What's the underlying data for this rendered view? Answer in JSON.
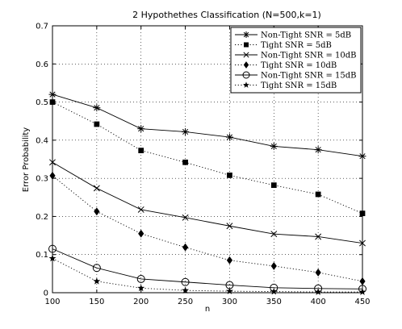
{
  "chart_data": {
    "type": "line",
    "title": "2 Hypothethes Classification (N=500,k=1)",
    "xlabel": "n",
    "ylabel": "Error Probability",
    "xlim": [
      100,
      450
    ],
    "ylim": [
      0,
      0.7
    ],
    "x": [
      100,
      150,
      200,
      250,
      300,
      350,
      400,
      450
    ],
    "x_ticks": [
      "100",
      "150",
      "200",
      "250",
      "300",
      "350",
      "400",
      "450"
    ],
    "y_ticks": [
      "0",
      "0.1",
      "0.2",
      "0.3",
      "0.4",
      "0.5",
      "0.6",
      "0.7"
    ],
    "grid": true,
    "legend_position": "top-right",
    "series": [
      {
        "name": "Non-Tight SNR = 5dB",
        "marker": "asterisk",
        "line": "solid",
        "values": [
          0.52,
          0.485,
          0.43,
          0.422,
          0.408,
          0.384,
          0.375,
          0.358
        ]
      },
      {
        "name": "Tight SNR = 5dB",
        "marker": "square",
        "line": "dotted",
        "values": [
          0.5,
          0.442,
          0.373,
          0.342,
          0.308,
          0.282,
          0.258,
          0.208
        ]
      },
      {
        "name": "Non-Tight SNR = 10dB",
        "marker": "x",
        "line": "solid",
        "values": [
          0.342,
          0.274,
          0.218,
          0.197,
          0.175,
          0.154,
          0.147,
          0.13
        ]
      },
      {
        "name": "Tight SNR = 10dB",
        "marker": "diamond",
        "line": "dotted",
        "values": [
          0.307,
          0.213,
          0.155,
          0.119,
          0.085,
          0.07,
          0.053,
          0.03
        ]
      },
      {
        "name": "Non-Tight SNR = 15dB",
        "marker": "circle",
        "line": "solid",
        "values": [
          0.115,
          0.065,
          0.036,
          0.028,
          0.02,
          0.013,
          0.011,
          0.01
        ]
      },
      {
        "name": "Tight SNR = 15dB",
        "marker": "star",
        "line": "dotted",
        "values": [
          0.09,
          0.03,
          0.012,
          0.006,
          0.004,
          0.003,
          0.002,
          0.002
        ]
      }
    ]
  }
}
